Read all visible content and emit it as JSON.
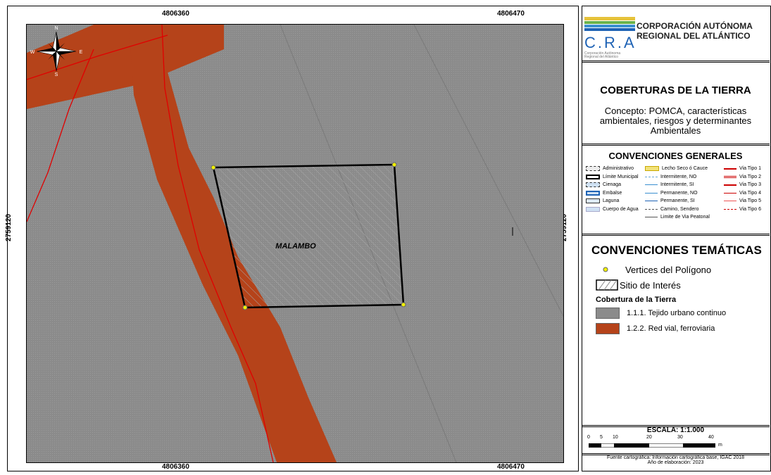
{
  "map": {
    "coords_top": [
      "4806360",
      "4806470"
    ],
    "coords_bottom": [
      "4806360",
      "4806470"
    ],
    "coord_left": "2759120",
    "coord_right": "2759120",
    "site_label": "MALAMBO",
    "north_arrow": {
      "n": "N",
      "s": "S",
      "e": "E",
      "w": "W"
    },
    "colors": {
      "urban": "#8b8b8b",
      "road": "#b5431a",
      "road_line": "#e00000"
    }
  },
  "logo": {
    "line1": "CORPORACIÓN AUTÓNOMA",
    "line2": "REGIONAL DEL ATLÁNTICO",
    "acronym": "C.R.A",
    "small_line1": "Corporación Autónoma",
    "small_line2": "Regional del Atlántico"
  },
  "title": {
    "main": "COBERTURAS DE LA TIERRA",
    "concept": "Concepto: POMCA, características ambientales, riesgos y determinantes Ambientales"
  },
  "conventions_general": {
    "heading": "CONVENCIONES GENERALES",
    "col1": [
      "Administrativo",
      "Límite Municipal",
      "Cienaga",
      "Embalse",
      "Laguna",
      "Cuerpo de Agua"
    ],
    "col2": [
      "Lecho Seco ó Cauce",
      "Intermitente, NO",
      "Intermitente, SI",
      "Permanente, NO",
      "Permanente, SI",
      "Camino, Sendero",
      "Limite de Via Peatonal"
    ],
    "col3": [
      "Via Tipo 1",
      "Via Tipo 2",
      "Via Tipo 3",
      "Via Tipo 4",
      "Via Tipo 5",
      "Via Tipo 6"
    ]
  },
  "conventions_thematic": {
    "heading": "CONVENCIONES TEMÁTICAS",
    "vertices": "Vertices del Polígono",
    "site": "Sitio de Interés",
    "coverage_heading": "Cobertura de la Tierra",
    "coverage": [
      {
        "label": "1.1.1. Tejido urbano continuo",
        "color": "#8b8b8b"
      },
      {
        "label": "1.2.2. Red vial, ferroviaria",
        "color": "#b5431a"
      }
    ]
  },
  "scale": {
    "title": "ESCALA: 1:1.000",
    "ticks": [
      "0",
      "5",
      "10",
      "20",
      "30",
      "40"
    ],
    "unit": "m"
  },
  "source": {
    "line1": "Fuente cartográfica: Información cartográfica base, IGAC 2018",
    "line2": "Año de elaboración: 2023"
  }
}
